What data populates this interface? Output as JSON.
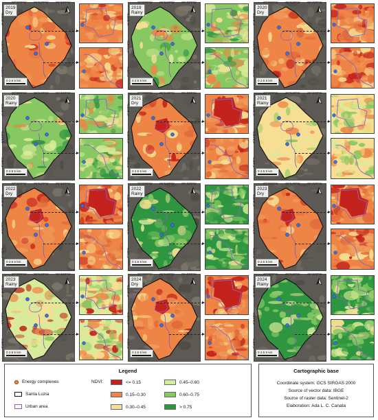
{
  "coords": {
    "lon": [
      "37°00'0\"W",
      "36°54'0\"W",
      "36°48'0\"W"
    ],
    "lat": [
      "6°48'0\"S",
      "6°54'0\"S",
      "7°0'0\"S"
    ]
  },
  "scale_label": "0  2.5  5 km",
  "panels": [
    {
      "year": "2019",
      "season": "Dry",
      "scheme": "orange"
    },
    {
      "year": "2019",
      "season": "Rainy",
      "scheme": "green_mix"
    },
    {
      "year": "2020",
      "season": "Dry",
      "scheme": "orange"
    },
    {
      "year": "2020",
      "season": "Rainy",
      "scheme": "green"
    },
    {
      "year": "2021",
      "season": "Dry",
      "scheme": "orange_red"
    },
    {
      "year": "2021",
      "season": "Rainy",
      "scheme": "yellow"
    },
    {
      "year": "2022",
      "season": "Dry",
      "scheme": "orange_red"
    },
    {
      "year": "2022",
      "season": "Rainy",
      "scheme": "green_dark"
    },
    {
      "year": "2023",
      "season": "Dry",
      "scheme": "orange_red"
    },
    {
      "year": "2023",
      "season": "Rainy",
      "scheme": "yellow_mix"
    },
    {
      "year": "2024",
      "season": "Dry",
      "scheme": "orange_red"
    },
    {
      "year": "2024",
      "season": "Rainy",
      "scheme": "green_dark"
    }
  ],
  "legend": {
    "title": "Legend",
    "energy": "Energy complexes",
    "santa_luzia": "Santa Luzia",
    "urban": "Urban area",
    "ndvi_label": "NDVI:",
    "classes": [
      {
        "label": "<= 0.15",
        "color": "#c4221d"
      },
      {
        "label": "0.15–0.30",
        "color": "#ee8445"
      },
      {
        "label": "0.30–0.45",
        "color": "#f6df94"
      },
      {
        "label": "0.45–0.60",
        "color": "#d8eb9a"
      },
      {
        "label": "0.60–0.75",
        "color": "#87c862"
      },
      {
        "label": "> 0.75",
        "color": "#2e9640"
      }
    ]
  },
  "cartographic": {
    "title": "Cartographic base",
    "lines": [
      "Coordinate system: GCS SIRGAS 2000",
      "Source of vector data: IBGE",
      "Source of raster data: Sentinel-2",
      "Elaboration: Ada L. C. Canata"
    ]
  },
  "colors": {
    "energy_dot": "#f28c3b",
    "boundary": "#111111",
    "urban_outline": "#9b59b6",
    "background_terrain": "#5d5a55"
  }
}
